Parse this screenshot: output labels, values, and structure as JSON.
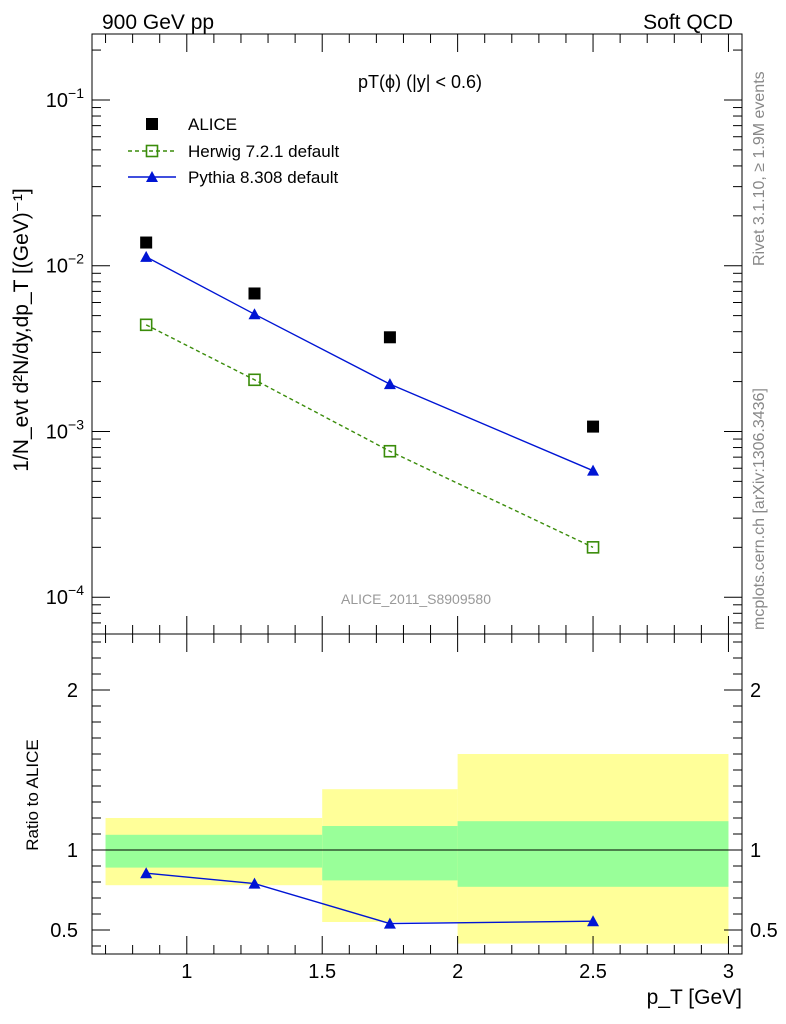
{
  "header": {
    "left": "900 GeV pp",
    "right": "Soft QCD",
    "side_top": "Rivet 3.1.10, ≥ 1.9M events",
    "side_bottom": "mcplots.cern.ch [arXiv:1306.3436]"
  },
  "chart_data": [
    {
      "type": "scatter",
      "panel": "main",
      "title": "pT(ϕ) (|y| < 0.6)",
      "ylabel": "1/N_evt d²N/dy,dp_T [(GeV)⁻¹]",
      "yscale": "log",
      "ylim": [
        6e-05,
        0.25
      ],
      "xlim": [
        0.65,
        3.05
      ],
      "watermark": "ALICE_2011_S8909580",
      "legend_position": "top-left",
      "yticks": [
        {
          "value": 0.1,
          "base": "10",
          "exp": "−1"
        },
        {
          "value": 0.01,
          "base": "10",
          "exp": "−2"
        },
        {
          "value": 0.001,
          "base": "10",
          "exp": "−3"
        },
        {
          "value": 0.0001,
          "base": "10",
          "exp": "−4"
        }
      ],
      "series": [
        {
          "name": "ALICE",
          "color": "#000000",
          "marker": "square-filled",
          "line": "none",
          "x": [
            0.85,
            1.25,
            1.75,
            2.5
          ],
          "y": [
            0.0138,
            0.0068,
            0.0037,
            0.00107
          ]
        },
        {
          "name": "Herwig 7.2.1 default",
          "color": "#3a8c0a",
          "marker": "square-open",
          "line": "dashed",
          "x": [
            0.85,
            1.25,
            1.75,
            2.5
          ],
          "y": [
            0.0044,
            0.00205,
            0.00076,
            0.0002
          ]
        },
        {
          "name": "Pythia 8.308 default",
          "color": "#0015d4",
          "marker": "triangle-filled",
          "line": "solid",
          "x": [
            0.85,
            1.25,
            1.75,
            2.5
          ],
          "y": [
            0.0113,
            0.0051,
            0.00193,
            0.00058
          ]
        }
      ]
    },
    {
      "type": "line",
      "panel": "ratio",
      "ylabel": "Ratio to ALICE",
      "xlabel": "p_T [GeV]",
      "ylim": [
        0.35,
        2.35
      ],
      "xlim": [
        0.65,
        3.05
      ],
      "xticks": [
        "1",
        "1.5",
        "2",
        "2.5",
        "3"
      ],
      "yticks": [
        "0.5",
        "1",
        "2"
      ],
      "bands": [
        {
          "xlow": 0.7,
          "xhigh": 1.5,
          "stat_low": 0.89,
          "stat_high": 1.095,
          "tot_low": 0.78,
          "tot_high": 1.2
        },
        {
          "xlow": 1.5,
          "xhigh": 2.0,
          "stat_low": 0.81,
          "stat_high": 1.15,
          "tot_low": 0.55,
          "tot_high": 1.38
        },
        {
          "xlow": 2.0,
          "xhigh": 3.0,
          "stat_low": 0.77,
          "stat_high": 1.18,
          "tot_low": 0.415,
          "tot_high": 1.6
        }
      ],
      "band_colors": {
        "stat": "#99ff99",
        "total": "#ffff99"
      },
      "series": [
        {
          "name": "Pythia 8.308 default",
          "color": "#0015d4",
          "marker": "triangle-filled",
          "x": [
            0.85,
            1.25,
            1.75,
            2.5
          ],
          "y": [
            0.855,
            0.79,
            0.54,
            0.555
          ]
        }
      ]
    }
  ]
}
